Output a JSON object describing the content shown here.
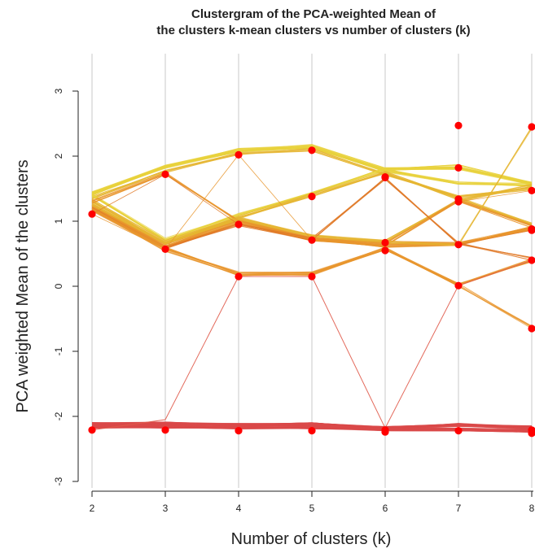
{
  "chart_data": {
    "type": "line",
    "title": "Clustergram of the PCA-weighted Mean of",
    "subtitle": "the clusters k-mean clusters vs number of clusters (k)",
    "xlabel": "Number of clusters (k)",
    "ylabel": "PCA weighted Mean of the clusters",
    "x": [
      2,
      3,
      4,
      5,
      6,
      7,
      8
    ],
    "x_ticks": [
      "2",
      "3",
      "4",
      "5",
      "6",
      "7",
      "8"
    ],
    "y_ticks": [
      "-3",
      "-2",
      "-1",
      "0",
      "1",
      "2",
      "3"
    ],
    "xlim": [
      2,
      8
    ],
    "ylim": [
      -3,
      3
    ],
    "grid": "vertical lines at each k",
    "colors": {
      "yellow": "#e8d23c",
      "gold": "#e6b532",
      "orange": "#e8962e",
      "dark_orange": "#e07a28",
      "red_line": "#e05a4a",
      "red_band": "#d94a4a",
      "point": "#ff0000",
      "grid": "#c8c8c8"
    },
    "cluster_means": [
      {
        "k": 2,
        "values": [
          1.11,
          -2.21
        ]
      },
      {
        "k": 3,
        "values": [
          1.72,
          0.57,
          -2.21
        ]
      },
      {
        "k": 4,
        "values": [
          2.02,
          0.95,
          0.15,
          -2.22
        ]
      },
      {
        "k": 5,
        "values": [
          2.09,
          1.38,
          0.71,
          0.15,
          -2.22
        ]
      },
      {
        "k": 6,
        "values": [
          1.68,
          1.67,
          0.67,
          0.55,
          -2.21,
          -2.24
        ]
      },
      {
        "k": 7,
        "values": [
          2.47,
          1.82,
          1.34,
          1.3,
          0.64,
          0.01,
          -2.22
        ]
      },
      {
        "k": 8,
        "values": [
          2.45,
          1.47,
          0.88,
          0.86,
          0.4,
          -0.65,
          -2.21,
          -2.26
        ]
      }
    ],
    "bands": [
      {
        "color": "yellow",
        "count": 14,
        "width": 0.9,
        "path": [
          1.42,
          1.83,
          2.08,
          2.14,
          1.78,
          1.58,
          1.56
        ]
      },
      {
        "color": "yellow",
        "count": 10,
        "width": 0.9,
        "path": [
          1.45,
          1.85,
          2.1,
          2.16,
          1.8,
          1.85,
          1.58
        ]
      },
      {
        "color": "gold",
        "count": 8,
        "width": 0.9,
        "path": [
          1.36,
          1.76,
          2.03,
          2.1,
          1.72,
          1.38,
          1.5
        ]
      },
      {
        "color": "yellow",
        "count": 10,
        "width": 0.9,
        "path": [
          1.4,
          0.72,
          1.1,
          1.42,
          1.8,
          1.82,
          1.58
        ]
      },
      {
        "color": "gold",
        "count": 10,
        "width": 0.9,
        "path": [
          1.32,
          0.68,
          1.06,
          1.4,
          1.75,
          1.35,
          0.95
        ]
      },
      {
        "color": "orange",
        "count": 8,
        "width": 0.9,
        "path": [
          1.25,
          0.64,
          1.02,
          0.74,
          0.68,
          0.66,
          0.88
        ]
      },
      {
        "color": "orange",
        "count": 14,
        "width": 0.9,
        "path": [
          1.22,
          0.6,
          0.98,
          0.72,
          0.62,
          0.65,
          0.9
        ]
      },
      {
        "color": "gold",
        "count": 8,
        "width": 0.9,
        "path": [
          1.28,
          0.66,
          1.04,
          0.78,
          0.7,
          1.32,
          1.55
        ]
      },
      {
        "color": "orange",
        "count": 8,
        "width": 0.9,
        "path": [
          1.3,
          1.74,
          1.0,
          0.72,
          0.64,
          1.32,
          0.92
        ]
      },
      {
        "color": "dark_orange",
        "count": 6,
        "width": 0.9,
        "path": [
          1.2,
          0.58,
          0.95,
          0.72,
          1.66,
          0.66,
          0.42
        ]
      },
      {
        "color": "orange",
        "count": 10,
        "width": 0.9,
        "path": [
          1.18,
          0.58,
          0.2,
          0.2,
          0.58,
          0.02,
          0.4
        ]
      },
      {
        "color": "orange",
        "count": 6,
        "width": 0.9,
        "path": [
          1.16,
          0.56,
          0.18,
          0.18,
          0.58,
          0.02,
          -0.63
        ]
      },
      {
        "color": "gold",
        "count": 4,
        "width": 0.9,
        "path": [
          1.26,
          0.66,
          1.05,
          0.76,
          0.68,
          0.64,
          2.44
        ]
      },
      {
        "color": "red_band",
        "count": 40,
        "width": 1.0,
        "path": [
          -2.12,
          -2.11,
          -2.13,
          -2.12,
          -2.18,
          -2.13,
          -2.17
        ]
      },
      {
        "color": "red_band",
        "count": 30,
        "width": 1.0,
        "path": [
          -2.16,
          -2.16,
          -2.17,
          -2.17,
          -2.2,
          -2.2,
          -2.22
        ]
      },
      {
        "color": "red_line",
        "count": 1,
        "width": 1.0,
        "path": [
          -2.21,
          -2.05,
          0.15,
          0.15,
          -2.18,
          0.01,
          0.4
        ]
      },
      {
        "color": "orange",
        "count": 1,
        "width": 0.8,
        "path": [
          1.11,
          0.57,
          2.02,
          0.71,
          0.67,
          1.3,
          1.47
        ]
      },
      {
        "color": "dark_orange",
        "count": 1,
        "width": 0.8,
        "path": [
          1.11,
          1.72,
          0.95,
          0.71,
          1.67,
          0.64,
          0.86
        ]
      }
    ]
  }
}
